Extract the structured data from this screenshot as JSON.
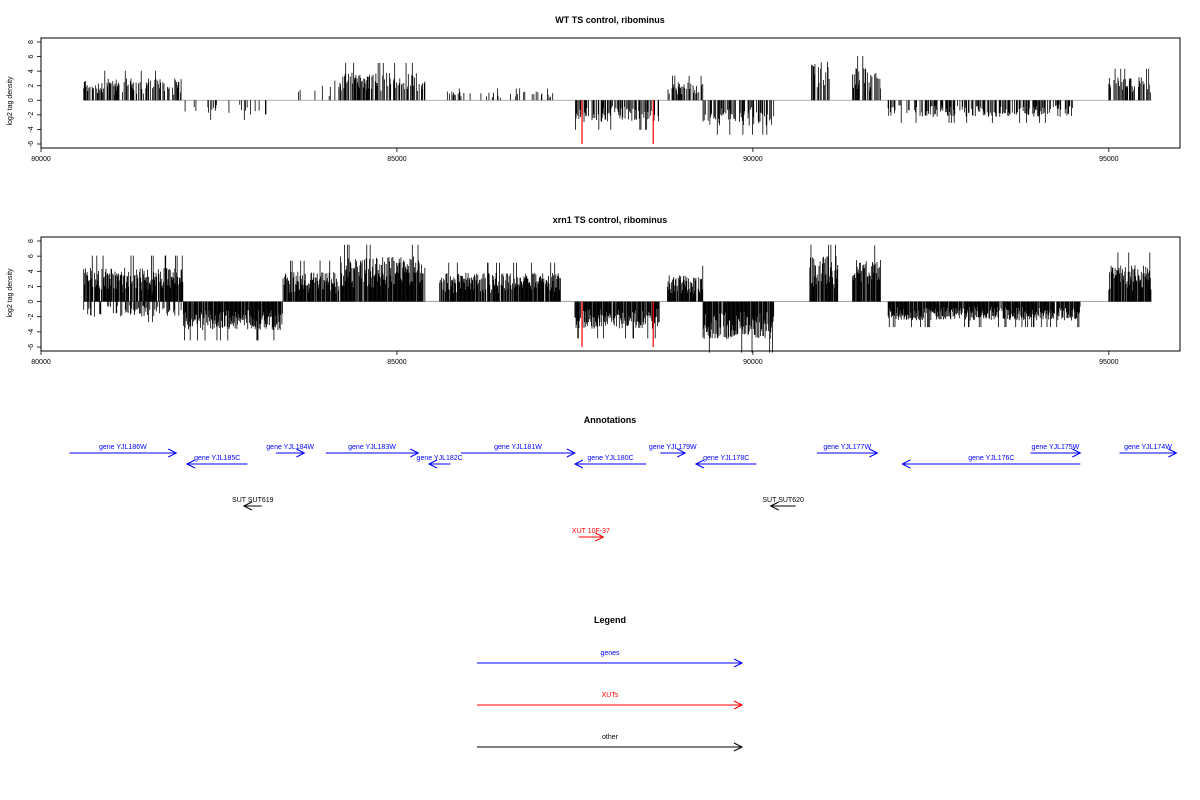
{
  "chart_data": [
    {
      "type": "bar",
      "title": "WT TS control, ribominus",
      "ylabel": "log2 tag density",
      "xlim": [
        80000,
        96000
      ],
      "ylim": [
        -6,
        8
      ],
      "x_ticks": [
        80000,
        85000,
        90000,
        95000
      ],
      "y_ticks": [
        -6,
        -4,
        -2,
        0,
        2,
        4,
        6,
        8
      ],
      "seed": 11,
      "density": 0.55,
      "segments": [
        {
          "x0": 80600,
          "x1": 82000,
          "sign": 1,
          "amp": 3.0
        },
        {
          "x0": 82000,
          "x1": 83200,
          "sign": -1,
          "amp": 2.0,
          "sparse": true
        },
        {
          "x0": 83600,
          "x1": 84200,
          "sign": 1,
          "amp": 2.0,
          "sparse": true
        },
        {
          "x0": 84200,
          "x1": 85400,
          "sign": 1,
          "amp": 3.8
        },
        {
          "x0": 85700,
          "x1": 87200,
          "sign": 1,
          "amp": 1.2,
          "sparse": true
        },
        {
          "x0": 87500,
          "x1": 88700,
          "sign": -1,
          "amp": 3.0
        },
        {
          "x0": 88800,
          "x1": 89300,
          "sign": 1,
          "amp": 2.5
        },
        {
          "x0": 89300,
          "x1": 90300,
          "sign": -1,
          "amp": 3.5
        },
        {
          "x0": 90800,
          "x1": 91100,
          "sign": 1,
          "amp": 5.5
        },
        {
          "x0": 91400,
          "x1": 91800,
          "sign": 1,
          "amp": 4.5
        },
        {
          "x0": 91900,
          "x1": 94500,
          "sign": -1,
          "amp": 2.3
        },
        {
          "x0": 95000,
          "x1": 95600,
          "sign": 1,
          "amp": 3.2
        }
      ],
      "highlights": [
        {
          "x": 87600,
          "y": -6,
          "color": "#ff0000"
        },
        {
          "x": 88600,
          "y": -6,
          "color": "#ff0000"
        }
      ]
    },
    {
      "type": "bar",
      "title": "xrn1 TS control, ribominus",
      "ylabel": "log2 tag density",
      "xlim": [
        80000,
        96000
      ],
      "ylim": [
        -6,
        8
      ],
      "x_ticks": [
        80000,
        85000,
        90000,
        95000
      ],
      "y_ticks": [
        -6,
        -4,
        -2,
        0,
        2,
        4,
        6,
        8
      ],
      "seed": 29,
      "density": 0.9,
      "segments": [
        {
          "x0": 80600,
          "x1": 82000,
          "sign": 1,
          "amp": 4.5
        },
        {
          "x0": 80600,
          "x1": 82000,
          "sign": -1,
          "amp": 2.0,
          "sparse": true
        },
        {
          "x0": 82000,
          "x1": 83400,
          "sign": -1,
          "amp": 3.8
        },
        {
          "x0": 83400,
          "x1": 84200,
          "sign": 1,
          "amp": 4.0
        },
        {
          "x0": 84200,
          "x1": 85400,
          "sign": 1,
          "amp": 6.0
        },
        {
          "x0": 85600,
          "x1": 87300,
          "sign": 1,
          "amp": 3.8
        },
        {
          "x0": 87500,
          "x1": 88700,
          "sign": -1,
          "amp": 3.6
        },
        {
          "x0": 88800,
          "x1": 89300,
          "sign": 1,
          "amp": 3.5
        },
        {
          "x0": 89300,
          "x1": 90300,
          "sign": -1,
          "amp": 5.0
        },
        {
          "x0": 90800,
          "x1": 91200,
          "sign": 1,
          "amp": 6.0
        },
        {
          "x0": 91400,
          "x1": 91800,
          "sign": 1,
          "amp": 5.5
        },
        {
          "x0": 91900,
          "x1": 94600,
          "sign": -1,
          "amp": 2.5
        },
        {
          "x0": 95000,
          "x1": 95600,
          "sign": 1,
          "amp": 4.8
        }
      ],
      "highlights": [
        {
          "x": 87600,
          "y": -6,
          "color": "#ff0000"
        },
        {
          "x": 88600,
          "y": -6,
          "color": "#ff0000"
        }
      ]
    }
  ],
  "annotations": {
    "title": "Annotations",
    "colors": {
      "gene": "#0000ff",
      "xut": "#ff0000",
      "other": "#000000"
    },
    "features": [
      {
        "label": "gene YJL186W",
        "kind": "gene",
        "x0": 80400,
        "x1": 81900,
        "dir": 1,
        "row": 0
      },
      {
        "label": "gene YJL185C",
        "kind": "gene",
        "x0": 82050,
        "x1": 82900,
        "dir": -1,
        "row": 1
      },
      {
        "label": "gene YJL184W",
        "kind": "gene",
        "x0": 83300,
        "x1": 83700,
        "dir": 1,
        "row": 0
      },
      {
        "label": "gene YJL183W",
        "kind": "gene",
        "x0": 84000,
        "x1": 85300,
        "dir": 1,
        "row": 0
      },
      {
        "label": "gene YJL182C",
        "kind": "gene",
        "x0": 85450,
        "x1": 85750,
        "dir": -1,
        "row": 1
      },
      {
        "label": "gene YJL181W",
        "kind": "gene",
        "x0": 85900,
        "x1": 87500,
        "dir": 1,
        "row": 0
      },
      {
        "label": "gene YJL180C",
        "kind": "gene",
        "x0": 87500,
        "x1": 88500,
        "dir": -1,
        "row": 1
      },
      {
        "label": "gene YJL179W",
        "kind": "gene",
        "x0": 88700,
        "x1": 89050,
        "dir": 1,
        "row": 0
      },
      {
        "label": "gene YJL178C",
        "kind": "gene",
        "x0": 89200,
        "x1": 90050,
        "dir": -1,
        "row": 1
      },
      {
        "label": "gene YJL177W",
        "kind": "gene",
        "x0": 90900,
        "x1": 91750,
        "dir": 1,
        "row": 0
      },
      {
        "label": "gene YJL176C",
        "kind": "gene",
        "x0": 92100,
        "x1": 94600,
        "dir": -1,
        "row": 1
      },
      {
        "label": "gene YJL175W",
        "kind": "gene",
        "x0": 93900,
        "x1": 94600,
        "dir": 1,
        "row": 0
      },
      {
        "label": "gene YJL174W",
        "kind": "gene",
        "x0": 95150,
        "x1": 95950,
        "dir": 1,
        "row": 0
      },
      {
        "label": "SUT SUT619",
        "kind": "other",
        "x0": 82850,
        "x1": 83100,
        "dir": -1,
        "row": 2
      },
      {
        "label": "SUT SUT620",
        "kind": "other",
        "x0": 90250,
        "x1": 90600,
        "dir": -1,
        "row": 2
      },
      {
        "label": "XUT 10F-37",
        "kind": "xut",
        "x0": 87550,
        "x1": 87900,
        "dir": 1,
        "row": 3
      }
    ]
  },
  "legend": {
    "title": "Legend",
    "items": [
      {
        "label": "genes",
        "color": "#0000ff"
      },
      {
        "label": "XUTs",
        "color": "#ff0000"
      },
      {
        "label": "other",
        "color": "#000000"
      }
    ]
  }
}
